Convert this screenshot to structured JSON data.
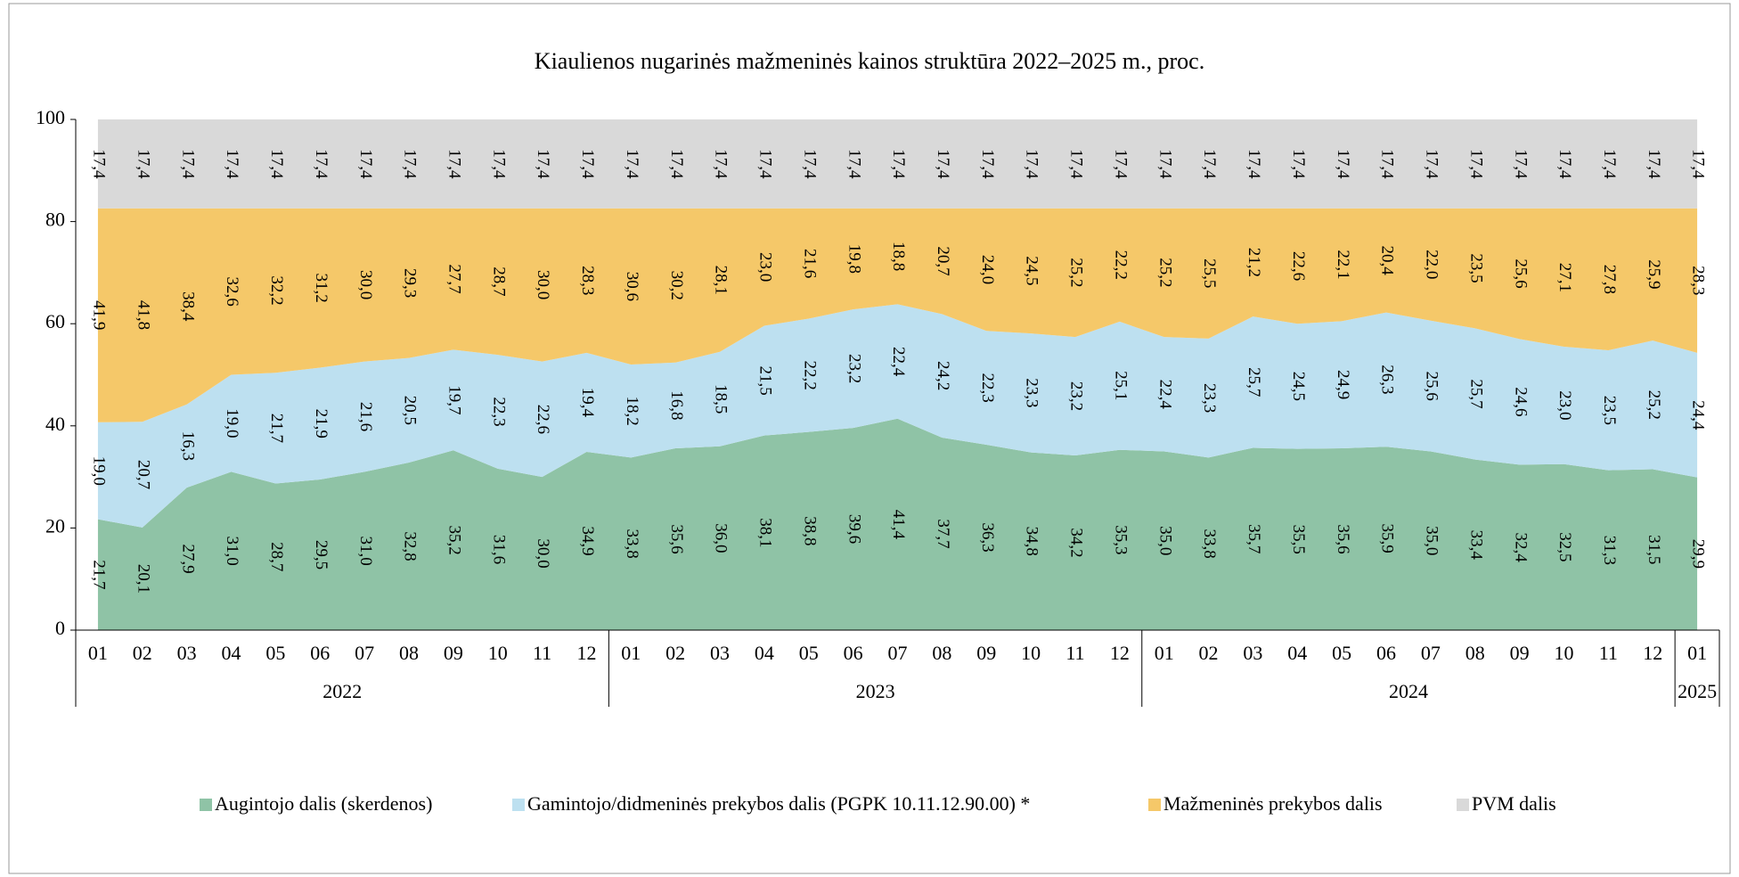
{
  "chart_data": {
    "type": "stacked_area",
    "title": "Kiaulienos nugarinės mažmeninės kainos struktūra 2022–2025 m., proc.",
    "categories": [
      "01",
      "02",
      "03",
      "04",
      "05",
      "06",
      "07",
      "08",
      "09",
      "10",
      "11",
      "12",
      "01",
      "02",
      "03",
      "04",
      "05",
      "06",
      "07",
      "08",
      "09",
      "10",
      "11",
      "12",
      "01",
      "02",
      "03",
      "04",
      "05",
      "06",
      "07",
      "08",
      "09",
      "10",
      "11",
      "12",
      "01"
    ],
    "groups": [
      {
        "label": "2022",
        "span": 12
      },
      {
        "label": "2023",
        "span": 12
      },
      {
        "label": "2024",
        "span": 12
      },
      {
        "label": "2025",
        "span": 1
      }
    ],
    "ylim": [
      0,
      100
    ],
    "yticks": [
      0,
      20,
      40,
      60,
      80,
      100
    ],
    "grid": false,
    "legend": "bottom",
    "series": [
      {
        "name": "Augintojo dalis (skerdenos)",
        "color": "#8fc3a6",
        "values": [
          21.7,
          20.1,
          27.9,
          31.0,
          28.7,
          29.5,
          31.0,
          32.8,
          35.2,
          31.6,
          30.0,
          34.9,
          33.8,
          35.6,
          36.0,
          38.1,
          38.8,
          39.6,
          41.4,
          37.7,
          36.3,
          34.8,
          34.2,
          35.3,
          35.0,
          33.8,
          35.7,
          35.5,
          35.6,
          35.9,
          35.0,
          33.4,
          32.4,
          32.5,
          31.3,
          31.5,
          29.9
        ],
        "value_labels": [
          "21,7",
          "20,1",
          "27,9",
          "31,0",
          "28,7",
          "29,5",
          "31,0",
          "32,8",
          "35,2",
          "31,6",
          "30,0",
          "34,9",
          "33,8",
          "35,6",
          "36,0",
          "38,1",
          "38,8",
          "39,6",
          "41,4",
          "37,7",
          "36,3",
          "34,8",
          "34,2",
          "35,3",
          "35,0",
          "33,8",
          "35,7",
          "35,5",
          "35,6",
          "35,9",
          "35,0",
          "33,4",
          "32,4",
          "32,5",
          "31,3",
          "31,5",
          "29,9"
        ]
      },
      {
        "name": "Gamintojo/didmeninės prekybos dalis (PGPK 10.11.12.90.00) *",
        "color": "#bde0f0",
        "values": [
          19.0,
          20.7,
          16.3,
          19.0,
          21.7,
          21.9,
          21.6,
          20.5,
          19.7,
          22.3,
          22.6,
          19.4,
          18.2,
          16.8,
          18.5,
          21.5,
          22.2,
          23.2,
          22.4,
          24.2,
          22.3,
          23.3,
          23.2,
          25.1,
          22.4,
          23.3,
          25.7,
          24.5,
          24.9,
          26.3,
          25.6,
          25.7,
          24.6,
          23.0,
          23.5,
          25.2,
          24.4
        ],
        "value_labels": [
          "19,0",
          "20,7",
          "16,3",
          "19,0",
          "21,7",
          "21,9",
          "21,6",
          "20,5",
          "19,7",
          "22,3",
          "22,6",
          "19,4",
          "18,2",
          "16,8",
          "18,5",
          "21,5",
          "22,2",
          "23,2",
          "22,4",
          "24,2",
          "22,3",
          "23,3",
          "23,2",
          "25,1",
          "22,4",
          "23,3",
          "25,7",
          "24,5",
          "24,9",
          "26,3",
          "25,6",
          "25,7",
          "24,6",
          "23,0",
          "23,5",
          "25,2",
          "24,4"
        ]
      },
      {
        "name": "Mažmeninės prekybos dalis",
        "color": "#f5c869",
        "values": [
          41.9,
          41.8,
          38.4,
          32.6,
          32.2,
          31.2,
          30.0,
          29.3,
          27.7,
          28.7,
          30.0,
          28.3,
          30.6,
          30.2,
          28.1,
          23.0,
          21.6,
          19.8,
          18.8,
          20.7,
          24.0,
          24.5,
          25.2,
          22.2,
          25.2,
          25.5,
          21.2,
          22.6,
          22.1,
          20.4,
          22.0,
          23.5,
          25.6,
          27.1,
          27.8,
          25.9,
          28.3
        ],
        "value_labels": [
          "41,9",
          "41,8",
          "38,4",
          "32,6",
          "32,2",
          "31,2",
          "30,0",
          "29,3",
          "27,7",
          "28,7",
          "30,0",
          "28,3",
          "30,6",
          "30,2",
          "28,1",
          "23,0",
          "21,6",
          "19,8",
          "18,8",
          "20,7",
          "24,0",
          "24,5",
          "25,2",
          "22,2",
          "25,2",
          "25,5",
          "21,2",
          "22,6",
          "22,1",
          "20,4",
          "22,0",
          "23,5",
          "25,6",
          "27,1",
          "27,8",
          "25,9",
          "28,3"
        ]
      },
      {
        "name": "PVM dalis",
        "color": "#d9d9d9",
        "values": [
          17.4,
          17.4,
          17.4,
          17.4,
          17.4,
          17.4,
          17.4,
          17.4,
          17.4,
          17.4,
          17.4,
          17.4,
          17.4,
          17.4,
          17.4,
          17.4,
          17.4,
          17.4,
          17.4,
          17.4,
          17.4,
          17.4,
          17.4,
          17.4,
          17.4,
          17.4,
          17.4,
          17.4,
          17.4,
          17.4,
          17.4,
          17.4,
          17.4,
          17.4,
          17.4,
          17.4,
          17.4
        ],
        "value_labels": [
          "17,4",
          "17,4",
          "17,4",
          "17,4",
          "17,4",
          "17,4",
          "17,4",
          "17,4",
          "17,4",
          "17,4",
          "17,4",
          "17,4",
          "17,4",
          "17,4",
          "17,4",
          "17,4",
          "17,4",
          "17,4",
          "17,4",
          "17,4",
          "17,4",
          "17,4",
          "17,4",
          "17,4",
          "17,4",
          "17,4",
          "17,4",
          "17,4",
          "17,4",
          "17,4",
          "17,4",
          "17,4",
          "17,4",
          "17,4",
          "17,4",
          "17,4",
          "17,4"
        ]
      }
    ]
  }
}
